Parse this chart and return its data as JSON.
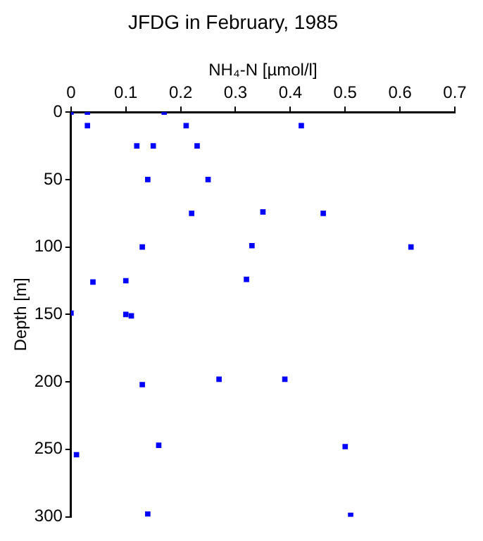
{
  "chart_data": {
    "type": "scatter",
    "title": "JFDG in February, 1985",
    "xlabel": "NH₄-N [µmol/l]",
    "ylabel": "Depth [m]",
    "x": [
      0,
      0.03,
      0.17,
      0.03,
      0.21,
      0.42,
      0.12,
      0.15,
      0.23,
      0.14,
      0.25,
      0.22,
      0.35,
      0.46,
      0.13,
      0.33,
      0.62,
      0.04,
      0.1,
      0.32,
      0,
      0.1,
      0.11,
      0.13,
      0.27,
      0.39,
      0.01,
      0.16,
      0.5,
      0.14,
      0.51
    ],
    "values": [
      0,
      0,
      0,
      10,
      10,
      10,
      25,
      25,
      25,
      50,
      50,
      75,
      74,
      75,
      100,
      99,
      100,
      126,
      125,
      124,
      149,
      150,
      151,
      202,
      198,
      198,
      254,
      247,
      248,
      298,
      299
    ],
    "color": "#0000ff",
    "marker": "square",
    "xlim": [
      0,
      0.7
    ],
    "xticks": [
      0,
      0.1,
      0.2,
      0.3,
      0.4,
      0.5,
      0.6,
      0.7
    ],
    "ylim": [
      300,
      0
    ],
    "yticks": [
      0,
      50,
      100,
      150,
      200,
      250,
      300
    ],
    "legend": false
  }
}
